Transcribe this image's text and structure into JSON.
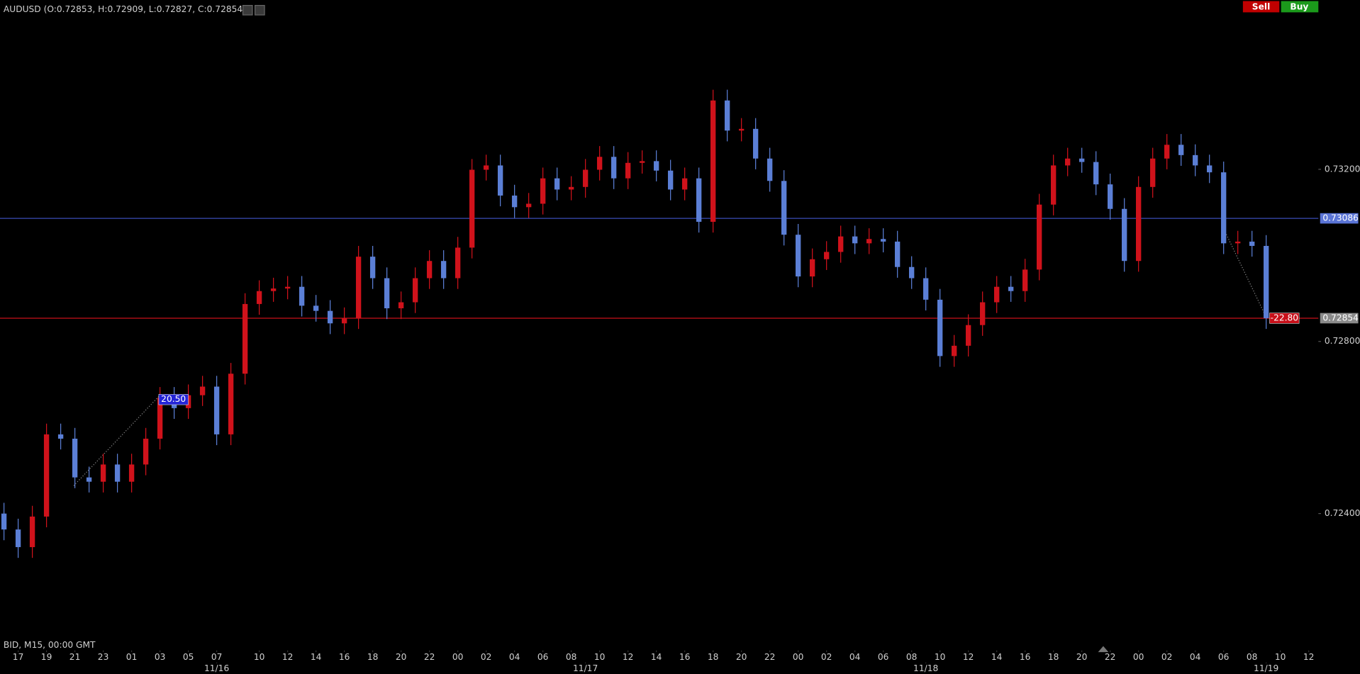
{
  "chart_data": {
    "type": "candlestick",
    "title": "AUDUSD (O:0.72853, H:0.72909, L:0.72827, C:0.72854)",
    "footer": "BID, M15, 00:00 GMT",
    "buttons": [
      "Sell",
      "Buy"
    ],
    "up_color": "#d0121b",
    "down_color": "#5b7fd6",
    "xlim": [
      -1.28,
      91.68
    ],
    "ylim": [
      0.72082,
      0.73593
    ],
    "yticks": [
      {
        "value": 0.724,
        "label": "0.72400"
      },
      {
        "value": 0.728,
        "label": "0.72800"
      },
      {
        "value": 0.732,
        "label": "0.73200"
      }
    ],
    "xticks": [
      {
        "value": 0,
        "label": "17"
      },
      {
        "value": 2,
        "label": "19"
      },
      {
        "value": 4,
        "label": "21"
      },
      {
        "value": 6,
        "label": "23"
      },
      {
        "value": 8,
        "label": "01"
      },
      {
        "value": 10,
        "label": "03"
      },
      {
        "value": 12,
        "label": "05"
      },
      {
        "value": 14,
        "label": "07"
      },
      {
        "value": 17,
        "label": "10"
      },
      {
        "value": 19,
        "label": "12"
      },
      {
        "value": 21,
        "label": "14"
      },
      {
        "value": 23,
        "label": "16"
      },
      {
        "value": 25,
        "label": "18"
      },
      {
        "value": 27,
        "label": "20"
      },
      {
        "value": 29,
        "label": "22"
      },
      {
        "value": 31,
        "label": "00"
      },
      {
        "value": 33,
        "label": "02"
      },
      {
        "value": 35,
        "label": "04"
      },
      {
        "value": 37,
        "label": "06"
      },
      {
        "value": 39,
        "label": "08"
      },
      {
        "value": 41,
        "label": "10"
      },
      {
        "value": 43,
        "label": "12"
      },
      {
        "value": 45,
        "label": "14"
      },
      {
        "value": 47,
        "label": "16"
      },
      {
        "value": 49,
        "label": "18"
      },
      {
        "value": 51,
        "label": "20"
      },
      {
        "value": 53,
        "label": "22"
      },
      {
        "value": 55,
        "label": "00"
      },
      {
        "value": 57,
        "label": "02"
      },
      {
        "value": 59,
        "label": "04"
      },
      {
        "value": 61,
        "label": "06"
      },
      {
        "value": 63,
        "label": "08"
      },
      {
        "value": 65,
        "label": "10"
      },
      {
        "value": 67,
        "label": "12"
      },
      {
        "value": 69,
        "label": "14"
      },
      {
        "value": 71,
        "label": "16"
      },
      {
        "value": 73,
        "label": "18"
      },
      {
        "value": 75,
        "label": "20"
      },
      {
        "value": 77,
        "label": "22"
      },
      {
        "value": 79,
        "label": "00"
      },
      {
        "value": 81,
        "label": "02"
      },
      {
        "value": 83,
        "label": "04"
      },
      {
        "value": 85,
        "label": "06"
      },
      {
        "value": 87,
        "label": "08"
      },
      {
        "value": 89,
        "label": "10"
      },
      {
        "value": 91,
        "label": "12"
      }
    ],
    "date_ticks": [
      {
        "value": 14,
        "label": "11/16"
      },
      {
        "value": 40,
        "label": "11/17"
      },
      {
        "value": 64,
        "label": "11/18"
      },
      {
        "value": 88,
        "label": "11/19"
      }
    ],
    "price_lines": [
      {
        "value": 0.73086,
        "label": "0.73086",
        "color": "#3a4bb5",
        "label_bg": "#5a74d6"
      },
      {
        "value": 0.72854,
        "label": "0.72854",
        "color": "#c8101a",
        "label_bg": "#8a8a8a"
      }
    ],
    "annotations": [
      {
        "label": "20.50",
        "x": 10.77,
        "y": 0.72665,
        "bg": "#2424d8"
      },
      {
        "label": "-22.80",
        "x": 89.1,
        "y": 0.72854,
        "bg": "#c8101a"
      }
    ],
    "x": [
      -1,
      0,
      1,
      2,
      3,
      4,
      5,
      6,
      7,
      8,
      9,
      10,
      11,
      12,
      13,
      14,
      15,
      16,
      17,
      18,
      19,
      20,
      21,
      22,
      23,
      24,
      25,
      26,
      27,
      28,
      29,
      30,
      31,
      32,
      33,
      34,
      35,
      36,
      37,
      38,
      39,
      40,
      41,
      42,
      43,
      44,
      45,
      46,
      47,
      48,
      49,
      50,
      51,
      52,
      53,
      54,
      55,
      56,
      57,
      58,
      59,
      60,
      61,
      62,
      63,
      64,
      65,
      66,
      67,
      68,
      69,
      70,
      71,
      72,
      73,
      74,
      75,
      76,
      77,
      78,
      79,
      80,
      81,
      82,
      83,
      84,
      85,
      86,
      87,
      88
    ],
    "open": [
      0.724,
      0.72363,
      0.72322,
      0.72393,
      0.72584,
      0.72574,
      0.72484,
      0.72474,
      0.72514,
      0.72474,
      0.72514,
      0.72574,
      0.72669,
      0.72645,
      0.72675,
      0.72695,
      0.72584,
      0.72725,
      0.72887,
      0.72917,
      0.72923,
      0.72927,
      0.72883,
      0.72871,
      0.72842,
      0.72854,
      0.72997,
      0.72947,
      0.72877,
      0.72891,
      0.72947,
      0.72987,
      0.72947,
      0.73018,
      0.73199,
      0.73209,
      0.73139,
      0.73112,
      0.7312,
      0.73179,
      0.73153,
      0.73159,
      0.73199,
      0.73229,
      0.73179,
      0.73215,
      0.73219,
      0.73197,
      0.73153,
      0.73179,
      0.73078,
      0.7336,
      0.7329,
      0.73294,
      0.73225,
      0.73173,
      0.73048,
      0.72951,
      0.72991,
      0.73008,
      0.73044,
      0.73028,
      0.73038,
      0.73032,
      0.72973,
      0.72947,
      0.72897,
      0.72766,
      0.7279,
      0.72838,
      0.72891,
      0.72927,
      0.72917,
      0.72967,
      0.73118,
      0.73209,
      0.73225,
      0.73217,
      0.73165,
      0.73108,
      0.72987,
      0.73159,
      0.73225,
      0.73257,
      0.73233,
      0.73209,
      0.73193,
      0.73028,
      0.73032,
      0.73022
    ],
    "high": [
      0.72425,
      0.72388,
      0.72418,
      0.72609,
      0.72609,
      0.72599,
      0.72509,
      0.72539,
      0.72539,
      0.72539,
      0.72599,
      0.72694,
      0.72694,
      0.727,
      0.7272,
      0.7272,
      0.7275,
      0.72912,
      0.72942,
      0.72948,
      0.72952,
      0.72952,
      0.72908,
      0.72896,
      0.72879,
      0.73022,
      0.73022,
      0.72972,
      0.72916,
      0.72972,
      0.73012,
      0.73012,
      0.73043,
      0.73224,
      0.73234,
      0.73234,
      0.73164,
      0.73145,
      0.73204,
      0.73204,
      0.73184,
      0.73224,
      0.73254,
      0.73254,
      0.7324,
      0.73244,
      0.73244,
      0.73222,
      0.73204,
      0.73204,
      0.73385,
      0.73385,
      0.73319,
      0.73319,
      0.7325,
      0.73198,
      0.73073,
      0.73016,
      0.73033,
      0.73069,
      0.73069,
      0.73063,
      0.73063,
      0.73057,
      0.72998,
      0.72972,
      0.72922,
      0.72815,
      0.72863,
      0.72916,
      0.72952,
      0.72952,
      0.72992,
      0.73143,
      0.73234,
      0.7325,
      0.7325,
      0.73242,
      0.7319,
      0.73133,
      0.73184,
      0.7325,
      0.73282,
      0.73282,
      0.73258,
      0.73234,
      0.73218,
      0.73057,
      0.73057,
      0.73047
    ],
    "low": [
      0.72338,
      0.72297,
      0.72297,
      0.72368,
      0.72549,
      0.72459,
      0.72449,
      0.72449,
      0.72449,
      0.72449,
      0.72489,
      0.72549,
      0.7262,
      0.7262,
      0.7265,
      0.72559,
      0.72559,
      0.727,
      0.72862,
      0.72892,
      0.72898,
      0.72858,
      0.72846,
      0.72817,
      0.72817,
      0.72829,
      0.72922,
      0.72852,
      0.72852,
      0.72866,
      0.72922,
      0.72922,
      0.72922,
      0.72993,
      0.73174,
      0.73114,
      0.73087,
      0.73087,
      0.73095,
      0.73128,
      0.73128,
      0.73134,
      0.73174,
      0.73154,
      0.73154,
      0.7319,
      0.73172,
      0.73128,
      0.73128,
      0.73053,
      0.73053,
      0.73265,
      0.73265,
      0.732,
      0.73148,
      0.73023,
      0.72926,
      0.72926,
      0.72966,
      0.72983,
      0.73003,
      0.73003,
      0.73007,
      0.72948,
      0.72922,
      0.72872,
      0.72741,
      0.72741,
      0.72765,
      0.72813,
      0.72866,
      0.72892,
      0.72892,
      0.72942,
      0.73093,
      0.73184,
      0.73192,
      0.7314,
      0.73083,
      0.72962,
      0.72962,
      0.73134,
      0.732,
      0.73208,
      0.73184,
      0.73168,
      0.73003,
      0.73003,
      0.72997,
      0.72829
    ],
    "close": [
      0.72363,
      0.72322,
      0.72393,
      0.72584,
      0.72574,
      0.72484,
      0.72474,
      0.72514,
      0.72474,
      0.72514,
      0.72574,
      0.72669,
      0.72645,
      0.72675,
      0.72695,
      0.72584,
      0.72725,
      0.72887,
      0.72917,
      0.72923,
      0.72927,
      0.72883,
      0.72871,
      0.72842,
      0.72854,
      0.72997,
      0.72947,
      0.72877,
      0.72891,
      0.72947,
      0.72987,
      0.72947,
      0.73018,
      0.73199,
      0.73209,
      0.73139,
      0.73112,
      0.7312,
      0.73179,
      0.73153,
      0.73159,
      0.73199,
      0.73229,
      0.73179,
      0.73215,
      0.73219,
      0.73197,
      0.73153,
      0.73179,
      0.73078,
      0.7336,
      0.7329,
      0.73294,
      0.73225,
      0.73173,
      0.73048,
      0.72951,
      0.72991,
      0.73008,
      0.73044,
      0.73028,
      0.73038,
      0.73032,
      0.72973,
      0.72947,
      0.72897,
      0.72766,
      0.7279,
      0.72838,
      0.72891,
      0.72927,
      0.72917,
      0.72967,
      0.73118,
      0.73209,
      0.73225,
      0.73217,
      0.73165,
      0.73108,
      0.72987,
      0.73159,
      0.73225,
      0.73257,
      0.73233,
      0.73209,
      0.73193,
      0.73028,
      0.73032,
      0.73022,
      0.72854
    ]
  }
}
